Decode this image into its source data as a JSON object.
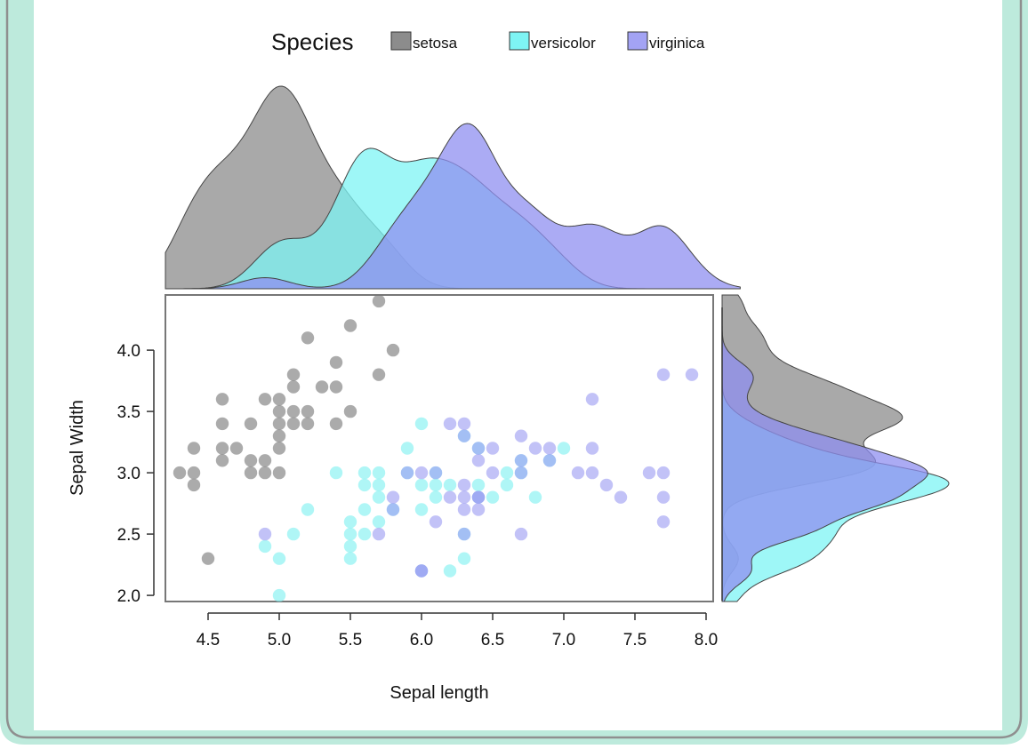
{
  "chart_data": {
    "type": "scatter",
    "xlabel": "Sepal length",
    "ylabel": "Sepal Width",
    "xlim": [
      4.2,
      8.05
    ],
    "ylim": [
      1.95,
      4.45
    ],
    "x_ticks": [
      "4.5",
      "5.0",
      "5.5",
      "6.0",
      "6.5",
      "7.0",
      "7.5",
      "8.0"
    ],
    "y_ticks": [
      "2.0",
      "2.5",
      "3.0",
      "3.5",
      "4.0"
    ],
    "grid": false,
    "legend": {
      "title": "Species",
      "position": "top",
      "entries": [
        "setosa",
        "versicolor",
        "virginica"
      ]
    },
    "marginal_plots": "density",
    "series": [
      {
        "name": "setosa",
        "color": "#777777",
        "points": [
          [
            5.7,
            4.4
          ],
          [
            5.5,
            4.2
          ],
          [
            5.2,
            4.1
          ],
          [
            5.8,
            4.0
          ],
          [
            5.4,
            3.9
          ],
          [
            5.1,
            3.8
          ],
          [
            5.7,
            3.8
          ],
          [
            5.3,
            3.7
          ],
          [
            5.4,
            3.7
          ],
          [
            5.1,
            3.7
          ],
          [
            4.6,
            3.6
          ],
          [
            4.9,
            3.6
          ],
          [
            5.0,
            3.6
          ],
          [
            5.1,
            3.5
          ],
          [
            5.0,
            3.5
          ],
          [
            5.5,
            3.5
          ],
          [
            5.2,
            3.5
          ],
          [
            4.6,
            3.4
          ],
          [
            4.8,
            3.4
          ],
          [
            5.0,
            3.4
          ],
          [
            5.1,
            3.4
          ],
          [
            5.2,
            3.4
          ],
          [
            5.4,
            3.4
          ],
          [
            5.0,
            3.3
          ],
          [
            4.4,
            3.2
          ],
          [
            4.6,
            3.2
          ],
          [
            4.7,
            3.2
          ],
          [
            5.0,
            3.2
          ],
          [
            4.6,
            3.1
          ],
          [
            4.8,
            3.1
          ],
          [
            4.9,
            3.1
          ],
          [
            4.3,
            3.0
          ],
          [
            4.4,
            3.0
          ],
          [
            4.8,
            3.0
          ],
          [
            4.9,
            3.0
          ],
          [
            5.0,
            3.0
          ],
          [
            4.4,
            2.9
          ],
          [
            4.5,
            2.3
          ]
        ]
      },
      {
        "name": "versicolor",
        "color": "#7ef0f0",
        "points": [
          [
            6.0,
            3.4
          ],
          [
            5.9,
            3.2
          ],
          [
            6.3,
            3.3
          ],
          [
            6.4,
            3.2
          ],
          [
            6.7,
            3.1
          ],
          [
            6.9,
            3.1
          ],
          [
            7.0,
            3.2
          ],
          [
            5.4,
            3.0
          ],
          [
            5.6,
            3.0
          ],
          [
            5.7,
            3.0
          ],
          [
            5.9,
            3.0
          ],
          [
            6.1,
            3.0
          ],
          [
            6.6,
            3.0
          ],
          [
            6.7,
            3.0
          ],
          [
            5.6,
            2.9
          ],
          [
            5.7,
            2.9
          ],
          [
            6.0,
            2.9
          ],
          [
            6.1,
            2.9
          ],
          [
            6.2,
            2.9
          ],
          [
            6.4,
            2.9
          ],
          [
            6.6,
            2.9
          ],
          [
            5.7,
            2.8
          ],
          [
            6.1,
            2.8
          ],
          [
            6.5,
            2.8
          ],
          [
            6.8,
            2.8
          ],
          [
            5.8,
            2.7
          ],
          [
            5.2,
            2.7
          ],
          [
            5.6,
            2.7
          ],
          [
            6.0,
            2.7
          ],
          [
            5.5,
            2.6
          ],
          [
            5.7,
            2.6
          ],
          [
            5.5,
            2.5
          ],
          [
            5.6,
            2.5
          ],
          [
            6.3,
            2.5
          ],
          [
            5.5,
            2.4
          ],
          [
            4.9,
            2.4
          ],
          [
            5.1,
            2.5
          ],
          [
            5.0,
            2.3
          ],
          [
            5.5,
            2.3
          ],
          [
            6.3,
            2.3
          ],
          [
            6.0,
            2.2
          ],
          [
            6.2,
            2.2
          ],
          [
            5.0,
            2.0
          ],
          [
            6.4,
            2.8
          ]
        ]
      },
      {
        "name": "virginica",
        "color": "#9d9df2",
        "points": [
          [
            7.7,
            3.8
          ],
          [
            7.9,
            3.8
          ],
          [
            7.2,
            3.6
          ],
          [
            6.2,
            3.4
          ],
          [
            6.3,
            3.4
          ],
          [
            6.4,
            3.2
          ],
          [
            6.5,
            3.2
          ],
          [
            6.8,
            3.2
          ],
          [
            6.9,
            3.2
          ],
          [
            7.2,
            3.2
          ],
          [
            6.4,
            3.1
          ],
          [
            6.7,
            3.1
          ],
          [
            6.9,
            3.1
          ],
          [
            6.7,
            3.3
          ],
          [
            6.3,
            3.3
          ],
          [
            5.9,
            3.0
          ],
          [
            6.0,
            3.0
          ],
          [
            6.1,
            3.0
          ],
          [
            6.5,
            3.0
          ],
          [
            6.7,
            3.0
          ],
          [
            7.1,
            3.0
          ],
          [
            7.2,
            3.0
          ],
          [
            7.6,
            3.0
          ],
          [
            7.7,
            3.0
          ],
          [
            6.3,
            2.9
          ],
          [
            6.4,
            2.8
          ],
          [
            5.8,
            2.8
          ],
          [
            6.2,
            2.8
          ],
          [
            6.3,
            2.8
          ],
          [
            6.4,
            2.8
          ],
          [
            7.7,
            2.8
          ],
          [
            7.4,
            2.8
          ],
          [
            7.3,
            2.9
          ],
          [
            5.8,
            2.7
          ],
          [
            6.3,
            2.7
          ],
          [
            6.4,
            2.7
          ],
          [
            6.0,
            2.2
          ],
          [
            6.1,
            2.6
          ],
          [
            7.7,
            2.6
          ],
          [
            6.3,
            2.5
          ],
          [
            6.7,
            2.5
          ],
          [
            5.7,
            2.5
          ],
          [
            4.9,
            2.5
          ],
          [
            6.0,
            2.2
          ]
        ]
      }
    ]
  }
}
